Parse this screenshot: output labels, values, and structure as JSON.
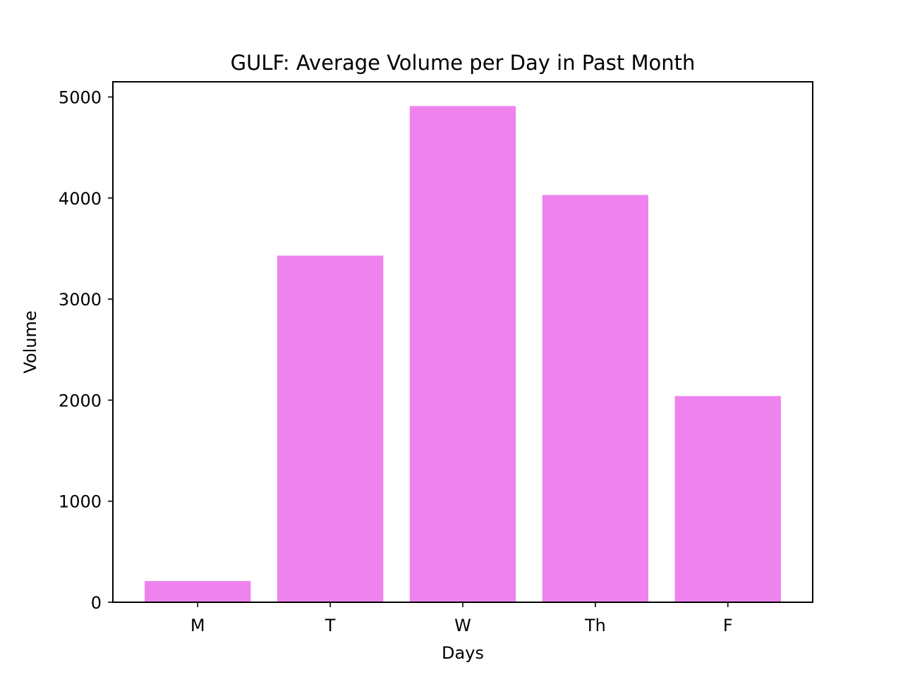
{
  "chart_data": {
    "type": "bar",
    "title": "GULF: Average Volume per Day in Past Month",
    "xlabel": "Days",
    "ylabel": "Volume",
    "categories": [
      "M",
      "T",
      "W",
      "Th",
      "F"
    ],
    "values": [
      210,
      3430,
      4910,
      4030,
      2040
    ],
    "ylim": [
      0,
      5150
    ],
    "yticks": [
      0,
      1000,
      2000,
      3000,
      4000,
      5000
    ],
    "bar_color": "#ee82ee",
    "grid": false,
    "legend": "none"
  }
}
